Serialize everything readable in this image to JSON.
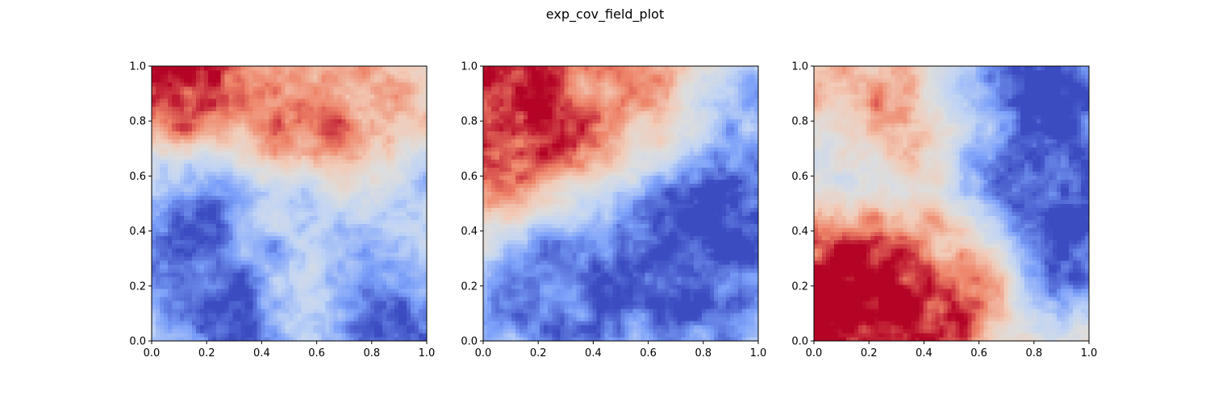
{
  "figure": {
    "suptitle": "exp_cov_field_plot"
  },
  "colormap": {
    "name": "coolwarm",
    "stops": [
      "#3b4cc0",
      "#7b9ff9",
      "#c0d4f5",
      "#dddddd",
      "#f2cbb7",
      "#ee8468",
      "#b40426"
    ]
  },
  "chart_data": [
    {
      "type": "heatmap",
      "title": "",
      "xlabel": "",
      "ylabel": "",
      "xlim": [
        0.0,
        1.0
      ],
      "ylim": [
        0.0,
        1.0
      ],
      "xticks": [
        "0.0",
        "0.2",
        "0.4",
        "0.6",
        "0.8",
        "1.0"
      ],
      "yticks": [
        "0.0",
        "0.2",
        "0.4",
        "0.6",
        "0.8",
        "1.0"
      ],
      "grid": false,
      "value_range": [
        -1,
        1
      ],
      "features": [
        {
          "x": 0.05,
          "y": 0.95,
          "value": 1.0,
          "radius": 0.15
        },
        {
          "x": 0.3,
          "y": 0.92,
          "value": 0.6,
          "radius": 0.18
        },
        {
          "x": 0.55,
          "y": 0.88,
          "value": 0.7,
          "radius": 0.15
        },
        {
          "x": 0.8,
          "y": 0.75,
          "value": 0.6,
          "radius": 0.15
        },
        {
          "x": 0.85,
          "y": 0.92,
          "value": 0.4,
          "radius": 0.15
        },
        {
          "x": 0.2,
          "y": 0.5,
          "value": -0.8,
          "radius": 0.15
        },
        {
          "x": 0.7,
          "y": 0.45,
          "value": -0.6,
          "radius": 0.14
        },
        {
          "x": 0.95,
          "y": 0.6,
          "value": -0.6,
          "radius": 0.12
        },
        {
          "x": 0.3,
          "y": 0.2,
          "value": -0.9,
          "radius": 0.18
        },
        {
          "x": 0.9,
          "y": 0.05,
          "value": -0.9,
          "radius": 0.14
        },
        {
          "x": 0.1,
          "y": 0.2,
          "value": -0.5,
          "radius": 0.12
        },
        {
          "x": 0.55,
          "y": 0.35,
          "value": 0.0,
          "radius": 0.15
        }
      ]
    },
    {
      "type": "heatmap",
      "title": "",
      "xlabel": "",
      "ylabel": "",
      "xlim": [
        0.0,
        1.0
      ],
      "ylim": [
        0.0,
        1.0
      ],
      "xticks": [
        "0.0",
        "0.2",
        "0.4",
        "0.6",
        "0.8",
        "1.0"
      ],
      "yticks": [
        "0.0",
        "0.2",
        "0.4",
        "0.6",
        "0.8",
        "1.0"
      ],
      "grid": false,
      "value_range": [
        -1,
        1
      ],
      "features": [
        {
          "x": 0.08,
          "y": 0.9,
          "value": 1.0,
          "radius": 0.2
        },
        {
          "x": 0.3,
          "y": 0.85,
          "value": 0.7,
          "radius": 0.2
        },
        {
          "x": 0.1,
          "y": 0.72,
          "value": 0.6,
          "radius": 0.15
        },
        {
          "x": 0.55,
          "y": 0.85,
          "value": 0.4,
          "radius": 0.15
        },
        {
          "x": 0.75,
          "y": 0.35,
          "value": -1.0,
          "radius": 0.2
        },
        {
          "x": 0.4,
          "y": 0.25,
          "value": -0.8,
          "radius": 0.18
        },
        {
          "x": 0.95,
          "y": 0.35,
          "value": -0.8,
          "radius": 0.15
        },
        {
          "x": 0.3,
          "y": 0.05,
          "value": -0.8,
          "radius": 0.12
        },
        {
          "x": 0.9,
          "y": 0.75,
          "value": -0.6,
          "radius": 0.15
        },
        {
          "x": 0.05,
          "y": 0.1,
          "value": -0.6,
          "radius": 0.1
        }
      ]
    },
    {
      "type": "heatmap",
      "title": "",
      "xlabel": "",
      "ylabel": "",
      "xlim": [
        0.0,
        1.0
      ],
      "ylim": [
        0.0,
        1.0
      ],
      "xticks": [
        "0.0",
        "0.2",
        "0.4",
        "0.6",
        "0.8",
        "1.0"
      ],
      "yticks": [
        "0.0",
        "0.2",
        "0.4",
        "0.6",
        "0.8",
        "1.0"
      ],
      "grid": false,
      "value_range": [
        -1,
        1
      ],
      "features": [
        {
          "x": 0.05,
          "y": 0.1,
          "value": 1.0,
          "radius": 0.18
        },
        {
          "x": 0.25,
          "y": 0.1,
          "value": 1.0,
          "radius": 0.15
        },
        {
          "x": 0.15,
          "y": 0.3,
          "value": 0.8,
          "radius": 0.15
        },
        {
          "x": 0.4,
          "y": 0.2,
          "value": 0.7,
          "radius": 0.15
        },
        {
          "x": 0.55,
          "y": 0.3,
          "value": 0.5,
          "radius": 0.12
        },
        {
          "x": 0.3,
          "y": 0.9,
          "value": 0.5,
          "radius": 0.14
        },
        {
          "x": 0.45,
          "y": 0.7,
          "value": 0.4,
          "radius": 0.12
        },
        {
          "x": 0.05,
          "y": 0.85,
          "value": 0.3,
          "radius": 0.1
        },
        {
          "x": 0.8,
          "y": 0.8,
          "value": -1.0,
          "radius": 0.2
        },
        {
          "x": 0.95,
          "y": 0.5,
          "value": -1.0,
          "radius": 0.2
        },
        {
          "x": 0.7,
          "y": 0.6,
          "value": -0.6,
          "radius": 0.15
        },
        {
          "x": 0.6,
          "y": 0.9,
          "value": -0.4,
          "radius": 0.12
        },
        {
          "x": 0.15,
          "y": 0.6,
          "value": -0.2,
          "radius": 0.12
        }
      ]
    }
  ]
}
